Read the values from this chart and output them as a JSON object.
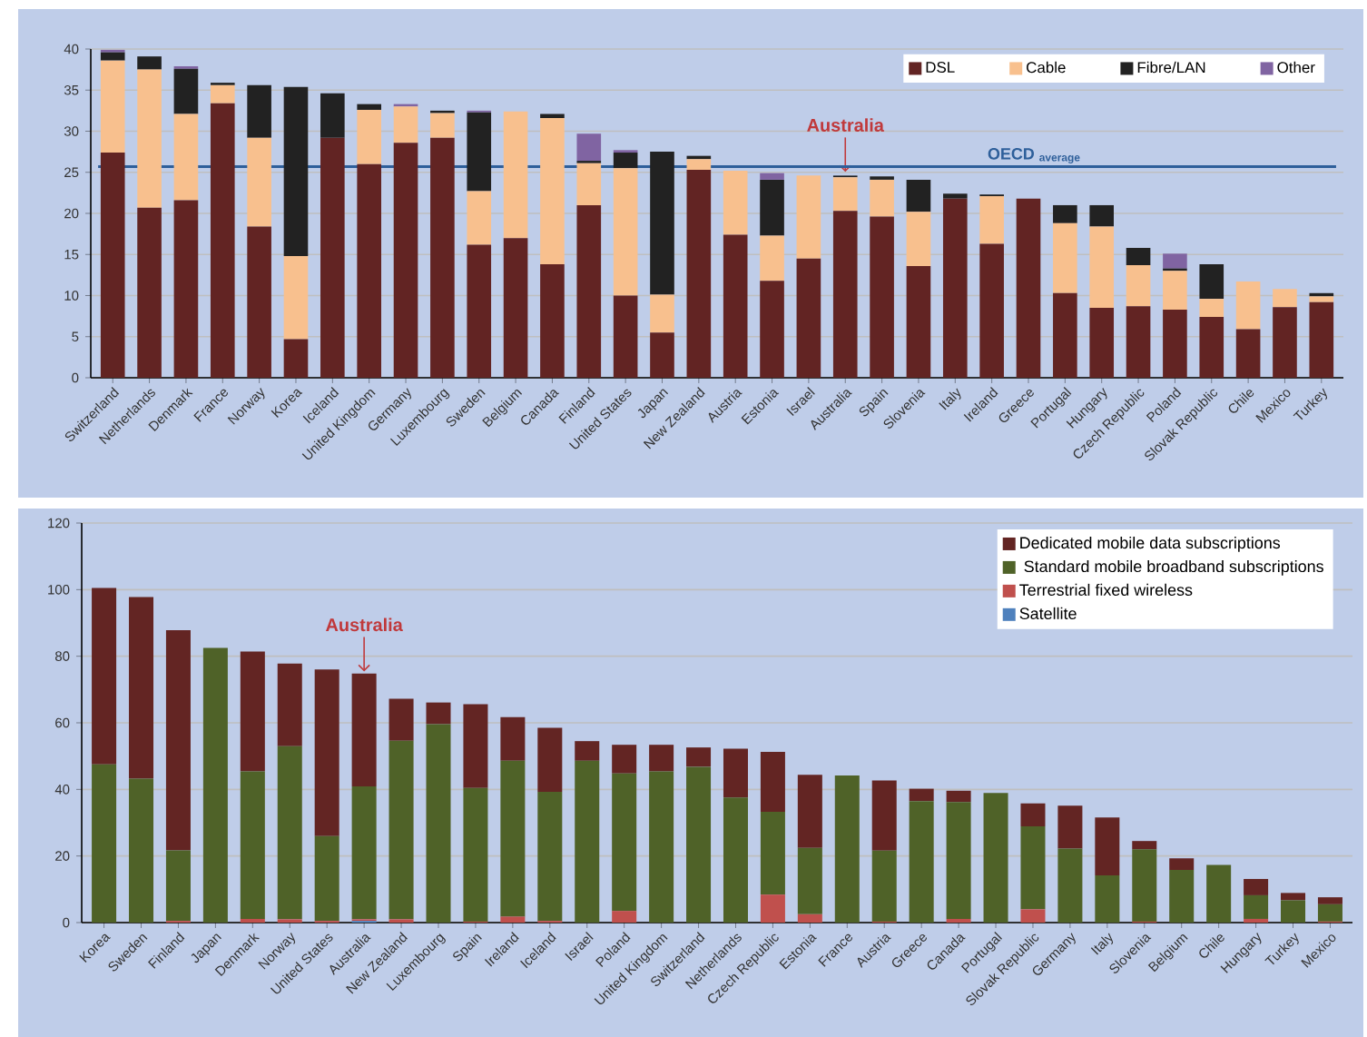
{
  "chart_data": [
    {
      "type": "bar",
      "stacked": true,
      "categories": [
        "Switzerland",
        "Netherlands",
        "Denmark",
        "France",
        "Norway",
        "Korea",
        "Iceland",
        "United Kingdom",
        "Germany",
        "Luxembourg",
        "Sweden",
        "Belgium",
        "Canada",
        "Finland",
        "United States",
        "Japan",
        "New Zealand",
        "Austria",
        "Estonia",
        "Israel",
        "Australia",
        "Spain",
        "Slovenia",
        "Italy",
        "Ireland",
        "Greece",
        "Portugal",
        "Hungary",
        "Czech Republic",
        "Poland",
        "Slovak Republic",
        "Chile",
        "Mexico",
        "Turkey"
      ],
      "series": [
        {
          "name": "DSL",
          "color": "#622423",
          "values": [
            27.4,
            20.7,
            21.6,
            33.4,
            18.4,
            4.7,
            29.2,
            26.0,
            28.6,
            29.2,
            16.2,
            17.0,
            13.8,
            21.0,
            10.0,
            5.5,
            25.3,
            17.4,
            11.8,
            14.5,
            20.3,
            19.6,
            13.6,
            21.8,
            16.3,
            21.8,
            10.3,
            8.5,
            8.7,
            8.3,
            7.4,
            5.9,
            8.6,
            9.2
          ]
        },
        {
          "name": "Cable",
          "color": "#f8c08e",
          "values": [
            11.2,
            16.8,
            10.5,
            2.2,
            10.8,
            10.1,
            0,
            6.6,
            4.4,
            3.0,
            6.5,
            15.4,
            17.8,
            5.1,
            15.5,
            4.6,
            1.3,
            7.8,
            5.5,
            10.1,
            4.1,
            4.5,
            6.6,
            0,
            5.8,
            0,
            8.5,
            9.9,
            5.0,
            4.7,
            2.2,
            5.8,
            2.2,
            0.7
          ]
        },
        {
          "name": "Fibre/LAN",
          "color": "#222222",
          "values": [
            1.0,
            1.6,
            5.5,
            0.3,
            6.4,
            20.6,
            5.4,
            0.7,
            0,
            0.3,
            9.6,
            0,
            0.5,
            0.3,
            1.9,
            17.4,
            0.4,
            0,
            6.8,
            0,
            0.2,
            0.4,
            3.9,
            0.6,
            0.2,
            0,
            2.2,
            2.6,
            2.1,
            0.3,
            4.2,
            0,
            0,
            0.4
          ]
        },
        {
          "name": "Other",
          "color": "#8064a2",
          "values": [
            0.3,
            0,
            0.3,
            0,
            0,
            0,
            0,
            0,
            0.3,
            0,
            0.2,
            0,
            0,
            3.3,
            0.3,
            0,
            0,
            0,
            0.8,
            0,
            0,
            0,
            0,
            0,
            0,
            0,
            0,
            0,
            0,
            1.8,
            0,
            0,
            0,
            0
          ]
        }
      ],
      "ylim": [
        0,
        40
      ],
      "yticks": [
        0,
        5,
        10,
        15,
        20,
        25,
        30,
        35,
        40
      ],
      "grid": "y",
      "legend": "top right",
      "ref_lines": [
        {
          "axis": "y",
          "value": 25.7,
          "label": "OECD $_{average}$",
          "color": "#2e5f9a"
        }
      ],
      "annotations": [
        {
          "text": "Australia",
          "x": "Australia",
          "y": 24.6
        }
      ]
    },
    {
      "type": "bar",
      "stacked": true,
      "categories": [
        "Korea",
        "Sweden",
        "Finland",
        "Japan",
        "Denmark",
        "Norway",
        "United States",
        "Australia",
        "New Zealand",
        "Luxembourg",
        "Spain",
        "Ireland",
        "Iceland",
        "Israel",
        "Poland",
        "United Kingdom",
        "Switzerland",
        "Netherlands",
        "Czech Republic",
        "Estonia",
        "France",
        "Austria",
        "Greece",
        "Canada",
        "Portugal",
        "Slovak Republic",
        "Germany",
        "Italy",
        "Slovenia",
        "Belgium",
        "Chile",
        "Hungary",
        "Turkey",
        "Mexico"
      ],
      "series": [
        {
          "name": "Satellite",
          "color": "#4f81bd",
          "values": [
            0,
            0,
            0,
            0,
            0,
            0,
            0,
            0.5,
            0,
            0,
            0,
            0,
            0,
            0,
            0,
            0,
            0,
            0,
            0,
            0,
            0,
            0,
            0,
            0,
            0,
            0,
            0,
            0,
            0,
            0,
            0,
            0,
            0,
            0
          ]
        },
        {
          "name": "Terrestrial fixed wireless",
          "color": "#c0504d",
          "values": [
            0,
            0,
            0.5,
            0,
            1.1,
            1.0,
            0.5,
            0.5,
            1.0,
            0,
            0.3,
            1.8,
            0.5,
            0,
            3.5,
            0,
            0,
            0,
            8.4,
            2.5,
            0,
            0.3,
            0,
            1.1,
            0,
            4.0,
            0,
            0,
            0.3,
            0,
            0,
            1.1,
            0,
            0.3
          ]
        },
        {
          "name": " Standard mobile broadband subscriptions",
          "color": "#4f6228",
          "values": [
            47.5,
            43.2,
            21.2,
            82.5,
            44.3,
            52.0,
            25.5,
            39.9,
            53.6,
            59.6,
            40.1,
            46.8,
            38.8,
            48.6,
            41.3,
            45.4,
            46.8,
            37.6,
            24.9,
            19.9,
            44.2,
            21.3,
            36.5,
            35.1,
            38.9,
            24.9,
            22.2,
            14.2,
            21.7,
            15.8,
            17.3,
            7.1,
            6.7,
            5.2
          ]
        },
        {
          "name": "Dedicated mobile data subscriptions",
          "color": "#632523",
          "values": [
            53.0,
            54.6,
            66.1,
            0,
            36.0,
            24.8,
            50.0,
            33.9,
            12.6,
            6.5,
            25.2,
            13.1,
            19.2,
            5.9,
            8.6,
            8.0,
            5.8,
            14.6,
            18.0,
            22.0,
            0,
            21.1,
            3.7,
            3.4,
            0,
            6.9,
            12.9,
            17.4,
            2.5,
            3.5,
            0,
            4.9,
            2.2,
            2.1
          ]
        }
      ],
      "ylim": [
        0,
        120
      ],
      "yticks": [
        0,
        20,
        40,
        60,
        80,
        100,
        120
      ],
      "grid": "y",
      "legend": "top right",
      "annotations": [
        {
          "text": "Australia",
          "x": "Australia",
          "y": 74.3
        }
      ]
    }
  ]
}
